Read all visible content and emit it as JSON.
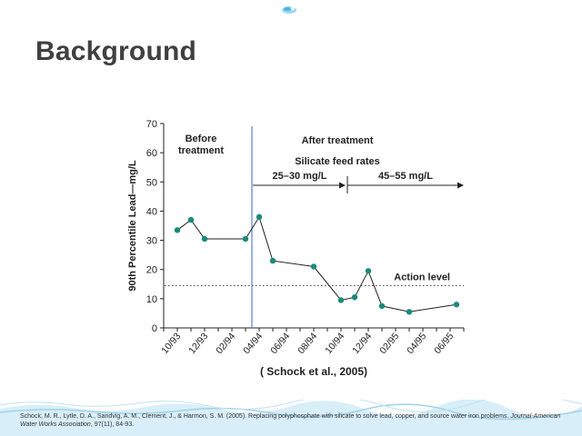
{
  "slide": {
    "title": "Background",
    "citation": {
      "authors": "Schock, M. R., Lytle, D. A., Sandvig, A. M., Clement, J., & Harmon, S. M. (2005). Replacing polyphosphate with silicate to solve lead, copper, and source water iron problems.",
      "journal": "Journal-American Water Works Association",
      "volume_issue_pages": ", 97(11), 84-93."
    }
  },
  "colors": {
    "title": "#404040",
    "marker": "#1a8a7a",
    "line": "#222222",
    "divider": "#5b7fcf",
    "axis": "#222222",
    "footer_water": "#bfe3f2"
  },
  "chart_data": {
    "type": "line",
    "ylabel": "90th Percentile Lead—mg/L",
    "y_ticks": [
      0,
      10,
      20,
      30,
      40,
      50,
      60,
      70
    ],
    "ylim": [
      0,
      70
    ],
    "x_tick_labels": [
      "10/93",
      "12/93",
      "02/94",
      "04/94",
      "06/94",
      "08/94",
      "10/94",
      "12/94",
      "02/95",
      "04/95",
      "06/95"
    ],
    "xlim_months": [
      "09/93",
      "07/95"
    ],
    "series": [
      {
        "points": [
          {
            "date": "1993-10-01",
            "y": 33.5
          },
          {
            "date": "1993-11-01",
            "y": 37
          },
          {
            "date": "1993-12-01",
            "y": 30.5
          },
          {
            "date": "1994-03-01",
            "y": 30.5
          },
          {
            "date": "1994-04-01",
            "y": 38
          },
          {
            "date": "1994-05-01",
            "y": 23
          },
          {
            "date": "1994-08-01",
            "y": 21
          },
          {
            "date": "1994-10-01",
            "y": 9.5
          },
          {
            "date": "1994-11-01",
            "y": 10.5
          },
          {
            "date": "1994-12-01",
            "y": 19.5
          },
          {
            "date": "1995-01-01",
            "y": 7.5
          },
          {
            "date": "1995-03-01",
            "y": 5.5
          },
          {
            "date": "1995-06-15",
            "y": 8
          }
        ]
      }
    ],
    "action_level": {
      "y": 14.5,
      "label": "Action level"
    },
    "treatment_start_date": "1994-03-15",
    "annotations": {
      "before_line1": "Before",
      "before_line2": "treatment",
      "after": "After treatment",
      "feed_rates": "Silicate feed rates",
      "rate1": "25–30 mg/L",
      "rate2": "45–55 mg/L",
      "rate_change_date": "1994-10-15",
      "rate2_end_date": "1995-07-01"
    },
    "source": "( Schock et al., 2005)"
  }
}
